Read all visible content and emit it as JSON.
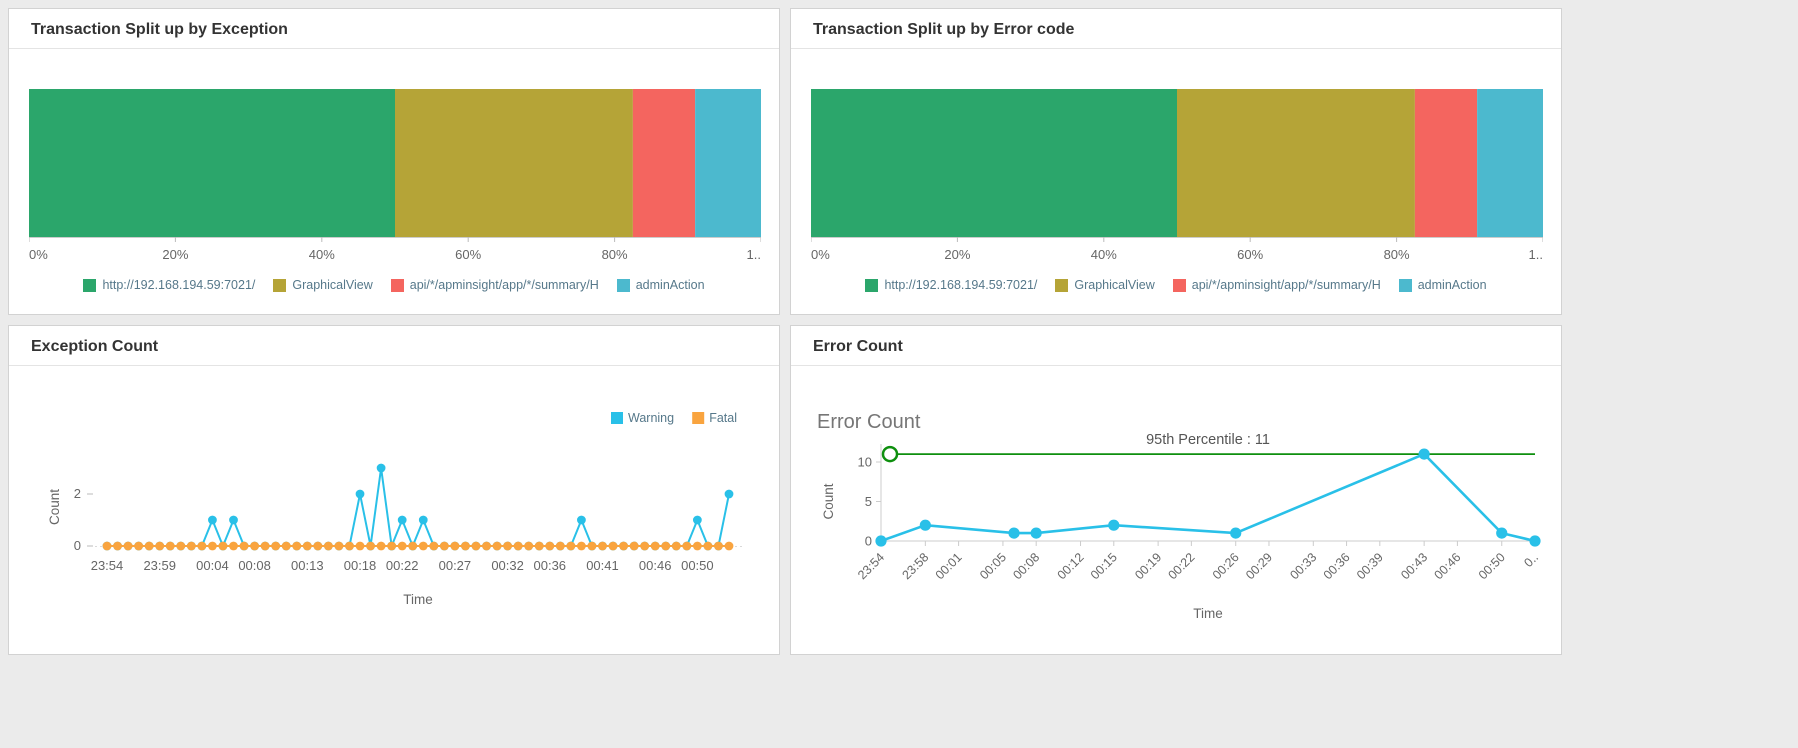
{
  "page": {
    "background_color": "#ebebeb"
  },
  "panels": [
    {
      "title": "Transaction Split up by Exception"
    },
    {
      "title": "Transaction Split up by Error code"
    },
    {
      "title": "Exception Count"
    },
    {
      "title": "Error Count"
    }
  ],
  "chart_data": [
    {
      "type": "bar",
      "variant": "horizontal-stacked-percentage",
      "title": "Transaction Split up by Exception",
      "segments": [
        {
          "label": "http://192.168.194.59:7021/",
          "value": 50,
          "color": "#2ba66b"
        },
        {
          "label": "GraphicalView",
          "value": 32.5,
          "color": "#b5a437"
        },
        {
          "label": "api/*/apminsight/app/*/summary/H",
          "value": 8.5,
          "color": "#f4655f"
        },
        {
          "label": "adminAction",
          "value": 9,
          "color": "#4cb9ce"
        }
      ],
      "x_ticks": [
        {
          "pos": 0,
          "label": "0%"
        },
        {
          "pos": 20,
          "label": "20%"
        },
        {
          "pos": 40,
          "label": "40%"
        },
        {
          "pos": 60,
          "label": "60%"
        },
        {
          "pos": 80,
          "label": "80%"
        },
        {
          "pos": 100,
          "label": "1.."
        }
      ]
    },
    {
      "type": "bar",
      "variant": "horizontal-stacked-percentage",
      "title": "Transaction Split up by Error code",
      "segments": [
        {
          "label": "http://192.168.194.59:7021/",
          "value": 50,
          "color": "#2ba66b"
        },
        {
          "label": "GraphicalView",
          "value": 32.5,
          "color": "#b5a437"
        },
        {
          "label": "api/*/apminsight/app/*/summary/H",
          "value": 8.5,
          "color": "#f4655f"
        },
        {
          "label": "adminAction",
          "value": 9,
          "color": "#4cb9ce"
        }
      ],
      "x_ticks": [
        {
          "pos": 0,
          "label": "0%"
        },
        {
          "pos": 20,
          "label": "20%"
        },
        {
          "pos": 40,
          "label": "40%"
        },
        {
          "pos": 60,
          "label": "60%"
        },
        {
          "pos": 80,
          "label": "80%"
        },
        {
          "pos": 100,
          "label": "1.."
        }
      ]
    },
    {
      "type": "line",
      "title": "Exception Count",
      "xlabel": "Time",
      "ylabel": "Count",
      "ylim": [
        0,
        3.5
      ],
      "y_ticks": [
        0,
        2
      ],
      "legend_position": "top-right",
      "x": [
        "23:54",
        "23:55",
        "23:56",
        "23:57",
        "23:58",
        "23:59",
        "00:00",
        "00:01",
        "00:02",
        "00:03",
        "00:04",
        "00:05",
        "00:06",
        "00:07",
        "00:08",
        "00:09",
        "00:10",
        "00:11",
        "00:12",
        "00:13",
        "00:14",
        "00:15",
        "00:16",
        "00:17",
        "00:18",
        "00:19",
        "00:20",
        "00:21",
        "00:22",
        "00:23",
        "00:24",
        "00:25",
        "00:26",
        "00:27",
        "00:28",
        "00:29",
        "00:30",
        "00:31",
        "00:32",
        "00:33",
        "00:34",
        "00:35",
        "00:36",
        "00:37",
        "00:38",
        "00:39",
        "00:40",
        "00:41",
        "00:42",
        "00:43",
        "00:44",
        "00:45",
        "00:46",
        "00:47",
        "00:48",
        "00:49",
        "00:50",
        "00:51",
        "00:52",
        "00:53"
      ],
      "x_tick_labels": [
        "23:54",
        "23:59",
        "00:04",
        "00:08",
        "00:13",
        "00:18",
        "00:22",
        "00:27",
        "00:32",
        "00:36",
        "00:41",
        "00:46",
        "00:50"
      ],
      "series": [
        {
          "name": "Warning",
          "color": "#29c0e8",
          "values": [
            0,
            0,
            0,
            0,
            0,
            0,
            0,
            0,
            0,
            0,
            1,
            0,
            1,
            0,
            0,
            0,
            0,
            0,
            0,
            0,
            0,
            0,
            0,
            0,
            2,
            0,
            3,
            0,
            1,
            0,
            1,
            0,
            0,
            0,
            0,
            0,
            0,
            0,
            0,
            0,
            0,
            0,
            0,
            0,
            0,
            1,
            0,
            0,
            0,
            0,
            0,
            0,
            0,
            0,
            0,
            0,
            1,
            0,
            0,
            2
          ]
        },
        {
          "name": "Fatal",
          "color": "#f9a43f",
          "values": [
            0,
            0,
            0,
            0,
            0,
            0,
            0,
            0,
            0,
            0,
            0,
            0,
            0,
            0,
            0,
            0,
            0,
            0,
            0,
            0,
            0,
            0,
            0,
            0,
            0,
            0,
            0,
            0,
            0,
            0,
            0,
            0,
            0,
            0,
            0,
            0,
            0,
            0,
            0,
            0,
            0,
            0,
            0,
            0,
            0,
            0,
            0,
            0,
            0,
            0,
            0,
            0,
            0,
            0,
            0,
            0,
            0,
            0,
            0,
            0
          ]
        }
      ]
    },
    {
      "type": "line",
      "title": "Error Count",
      "inner_title": "Error Count",
      "xlabel": "Time",
      "ylabel": "Count",
      "ylim": [
        0,
        12.3
      ],
      "y_ticks": [
        0,
        5,
        10
      ],
      "x_tick_rotation": -45,
      "t_range": [
        0,
        59
      ],
      "x_ticks": [
        {
          "t": 0,
          "label": "23:54"
        },
        {
          "t": 4,
          "label": "23:58"
        },
        {
          "t": 7,
          "label": "00:01"
        },
        {
          "t": 11,
          "label": "00:05"
        },
        {
          "t": 14,
          "label": "00:08"
        },
        {
          "t": 18,
          "label": "00:12"
        },
        {
          "t": 21,
          "label": "00:15"
        },
        {
          "t": 25,
          "label": "00:19"
        },
        {
          "t": 28,
          "label": "00:22"
        },
        {
          "t": 32,
          "label": "00:26"
        },
        {
          "t": 35,
          "label": "00:29"
        },
        {
          "t": 39,
          "label": "00:33"
        },
        {
          "t": 42,
          "label": "00:36"
        },
        {
          "t": 45,
          "label": "00:39"
        },
        {
          "t": 49,
          "label": "00:43"
        },
        {
          "t": 52,
          "label": "00:46"
        },
        {
          "t": 56,
          "label": "00:50"
        },
        {
          "t": 59,
          "label": "0.."
        }
      ],
      "series": [
        {
          "name": "Error Count",
          "color": "#29c0e8",
          "points": [
            {
              "t": 0,
              "time": "23:54",
              "y": 0
            },
            {
              "t": 4,
              "time": "23:58",
              "y": 2
            },
            {
              "t": 12,
              "time": "00:06",
              "y": 1
            },
            {
              "t": 14,
              "time": "00:08",
              "y": 1
            },
            {
              "t": 21,
              "time": "00:15",
              "y": 2
            },
            {
              "t": 32,
              "time": "00:26",
              "y": 1
            },
            {
              "t": 49,
              "time": "00:43",
              "y": 11
            },
            {
              "t": 56,
              "time": "00:50",
              "y": 1
            },
            {
              "t": 59,
              "time": "00:53",
              "y": 0
            }
          ]
        }
      ],
      "reference_line": {
        "label": "95th Percentile : 11",
        "value": 11,
        "color": "#0e8f0e"
      }
    }
  ]
}
